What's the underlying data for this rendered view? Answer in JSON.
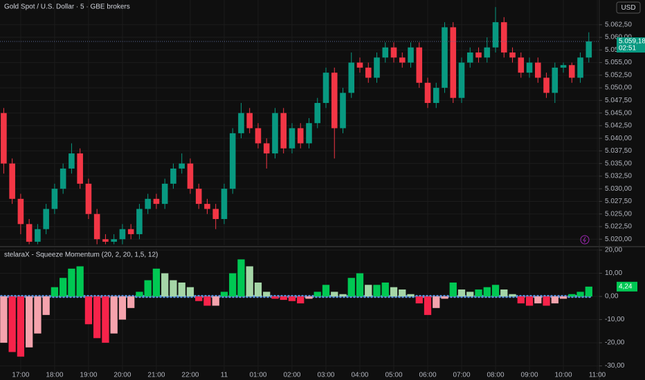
{
  "chart_data": [
    {
      "type": "candlestick",
      "title": "Gold Spot / U.S. Dollar · 5 · GBE brokers",
      "currency": "USD",
      "x": [
        -0.5,
        -0.25,
        0,
        0.25,
        0.5,
        0.75,
        1,
        1.25,
        1.5,
        1.75,
        2,
        2.25,
        2.5,
        2.75,
        3,
        3.25,
        3.5,
        3.75,
        4,
        4.25,
        4.5,
        4.75,
        5,
        5.25,
        5.5,
        5.75,
        6,
        6.25,
        6.5,
        6.75,
        7,
        7.25,
        7.5,
        7.75,
        8,
        8.25,
        8.5,
        8.75,
        9,
        9.25,
        9.5,
        9.75,
        10,
        10.25,
        10.5,
        10.75,
        11,
        11.25,
        11.5,
        11.75,
        12,
        12.25,
        12.5,
        12.75,
        13,
        13.25,
        13.5,
        13.75,
        14,
        14.25,
        14.5,
        14.75,
        15,
        15.25,
        15.5,
        15.75,
        16,
        16.25,
        16.5,
        16.75
      ],
      "open": [
        5045,
        5035,
        5028,
        5023,
        5019.5,
        5022,
        5026,
        5030,
        5034,
        5037,
        5031,
        5025,
        5020,
        5019.5,
        5020,
        5022,
        5021,
        5026,
        5028,
        5027,
        5031,
        5034,
        5035,
        5030,
        5027,
        5026,
        5024,
        5030,
        5041,
        5045,
        5042,
        5039,
        5037,
        5045,
        5038,
        5042,
        5039,
        5043,
        5047,
        5053,
        5042,
        5049,
        5055,
        5054,
        5052,
        5056,
        5058,
        5056,
        5055,
        5058,
        5051,
        5047,
        5050,
        5062,
        5048,
        5055,
        5057,
        5056,
        5058,
        5063,
        5057,
        5056,
        5053,
        5055,
        5052,
        5049,
        5054,
        5054.5,
        5052,
        5056
      ],
      "high": [
        5046,
        5036,
        5029,
        5024,
        5023,
        5027,
        5031,
        5035,
        5039,
        5038,
        5032,
        5026,
        5021,
        5021,
        5023,
        5023,
        5027,
        5029,
        5029,
        5032,
        5035,
        5037,
        5036,
        5031,
        5028,
        5027,
        5031,
        5042,
        5047,
        5046,
        5043,
        5040,
        5046,
        5046,
        5043,
        5043,
        5044,
        5048,
        5054,
        5054,
        5050,
        5057,
        5056,
        5055,
        5057,
        5059,
        5059,
        5057,
        5059,
        5059,
        5052,
        5051,
        5063,
        5063,
        5056,
        5058,
        5058,
        5060,
        5066,
        5064,
        5058,
        5057,
        5056,
        5056,
        5053,
        5055,
        5055,
        5055,
        5057,
        5061
      ],
      "low": [
        5033,
        5027,
        5021,
        5019,
        5019,
        5021,
        5025,
        5029,
        5033,
        5030,
        5024,
        5019,
        5019,
        5019,
        5019,
        5020,
        5020,
        5025,
        5026,
        5026,
        5030,
        5033,
        5029,
        5026,
        5025,
        5022,
        5023,
        5029,
        5040,
        5041,
        5038,
        5034,
        5036,
        5037,
        5037,
        5038,
        5038,
        5042,
        5046,
        5036,
        5041,
        5048,
        5053,
        5051,
        5051,
        5055,
        5055,
        5054,
        5054,
        5050,
        5046,
        5046,
        5049,
        5047,
        5047,
        5054,
        5055,
        5055,
        5057,
        5056,
        5055,
        5052,
        5052,
        5051,
        5048,
        5047,
        5053,
        5051,
        5051,
        5055
      ],
      "close": [
        5035,
        5028,
        5023,
        5019.5,
        5022,
        5026,
        5030,
        5034,
        5037,
        5031,
        5025,
        5020,
        5019.5,
        5020,
        5022,
        5021,
        5026,
        5028,
        5027,
        5031,
        5034,
        5035,
        5030,
        5027,
        5026,
        5024,
        5030,
        5041,
        5045,
        5042,
        5039,
        5037,
        5045,
        5038,
        5042,
        5039,
        5043,
        5047,
        5053,
        5042,
        5049,
        5055,
        5054,
        5052,
        5056,
        5058,
        5056,
        5055,
        5058,
        5051,
        5047,
        5050,
        5062,
        5048,
        5055,
        5057,
        5056,
        5058,
        5063,
        5057,
        5056,
        5053,
        5055,
        5052,
        5049,
        5054,
        5054.5,
        5052,
        5056,
        5059.18
      ],
      "up_color": "#089981",
      "down_color": "#f23645",
      "xlim": [
        -0.61,
        17.06
      ],
      "ylim": [
        5018.8,
        5067.4
      ],
      "yticks": [
        {
          "value": 5020,
          "label": "5.020,00"
        },
        {
          "value": 5022.5,
          "label": "5.022,50"
        },
        {
          "value": 5025,
          "label": "5.025,00"
        },
        {
          "value": 5027.5,
          "label": "5.027,50"
        },
        {
          "value": 5030,
          "label": "5.030,00"
        },
        {
          "value": 5032.5,
          "label": "5.032,50"
        },
        {
          "value": 5035,
          "label": "5.035,00"
        },
        {
          "value": 5037.5,
          "label": "5.037,50"
        },
        {
          "value": 5040,
          "label": "5.040,00"
        },
        {
          "value": 5042.5,
          "label": "5.042,50"
        },
        {
          "value": 5045,
          "label": "5.045,00"
        },
        {
          "value": 5047.5,
          "label": "5.047,50"
        },
        {
          "value": 5050,
          "label": "5.050,00"
        },
        {
          "value": 5052.5,
          "label": "5.052,50"
        },
        {
          "value": 5055,
          "label": "5.055,00"
        },
        {
          "value": 5057.5,
          "label": "5.057,50"
        },
        {
          "value": 5060,
          "label": "5.060,00"
        },
        {
          "value": 5062.5,
          "label": "5.062,50"
        }
      ],
      "last_value": 5059.18,
      "last_label": "5.059,18",
      "countdown": "02:51",
      "grid": true
    },
    {
      "type": "bar",
      "title": "stelaraX - Squeeze Momentum (20, 2, 20, 1,5, 12)",
      "x": [
        -0.5,
        -0.25,
        0,
        0.25,
        0.5,
        0.75,
        1,
        1.25,
        1.5,
        1.75,
        2,
        2.25,
        2.5,
        2.75,
        3,
        3.25,
        3.5,
        3.75,
        4,
        4.25,
        4.5,
        4.75,
        5,
        5.25,
        5.5,
        5.75,
        6,
        6.25,
        6.5,
        6.75,
        7,
        7.25,
        7.5,
        7.75,
        8,
        8.25,
        8.5,
        8.75,
        9,
        9.25,
        9.5,
        9.75,
        10,
        10.25,
        10.5,
        10.75,
        11,
        11.25,
        11.5,
        11.75,
        12,
        12.25,
        12.5,
        12.75,
        13,
        13.25,
        13.5,
        13.75,
        14,
        14.25,
        14.5,
        14.75,
        15,
        15.25,
        15.5,
        15.75,
        16,
        16.25,
        16.5,
        16.75
      ],
      "values": [
        -20,
        -24,
        -26,
        -22,
        -16,
        -8,
        4,
        8,
        12,
        13,
        -12,
        -18,
        -20,
        -16,
        -10,
        -5,
        2,
        7,
        12,
        10,
        7,
        6,
        4,
        -2,
        -4,
        -4,
        2,
        10,
        16,
        13,
        6,
        2,
        -1,
        -1.5,
        -2,
        -3,
        -1,
        2,
        5,
        2,
        1,
        8,
        10,
        5,
        5,
        6,
        4,
        3,
        1,
        -3,
        -8,
        -5,
        -1,
        6,
        3,
        2,
        3,
        4,
        5,
        3,
        1,
        -3,
        -4,
        -3,
        -4,
        -3,
        -1,
        1,
        2,
        4.24
      ],
      "colors": [
        "#00c853",
        "#a5d6a7",
        "#f7234a",
        "#f5a3ad"
      ],
      "xlim": [
        -0.61,
        17.06
      ],
      "ylim": [
        -33.1,
        20.6
      ],
      "yticks": [
        {
          "value": 20,
          "label": "20,00"
        },
        {
          "value": 10,
          "label": "10,00"
        },
        {
          "value": 0,
          "label": "0,00"
        },
        {
          "value": -10,
          "label": "-10,00"
        },
        {
          "value": -20,
          "label": "-20,00"
        },
        {
          "value": -30,
          "label": "-30,00"
        }
      ],
      "xticks": [
        {
          "value": 0,
          "label": "17:00"
        },
        {
          "value": 1,
          "label": "18:00"
        },
        {
          "value": 2,
          "label": "19:00"
        },
        {
          "value": 3,
          "label": "20:00"
        },
        {
          "value": 4,
          "label": "21:00"
        },
        {
          "value": 5,
          "label": "22:00"
        },
        {
          "value": 6,
          "label": "11"
        },
        {
          "value": 7,
          "label": "01:00"
        },
        {
          "value": 8,
          "label": "02:00"
        },
        {
          "value": 9,
          "label": "03:00"
        },
        {
          "value": 10,
          "label": "04:00"
        },
        {
          "value": 11,
          "label": "05:00"
        },
        {
          "value": 12,
          "label": "06:00"
        },
        {
          "value": 13,
          "label": "07:00"
        },
        {
          "value": 14,
          "label": "08:00"
        },
        {
          "value": 15,
          "label": "09:00"
        },
        {
          "value": 16,
          "label": "10:00"
        },
        {
          "value": 17,
          "label": "11:00"
        }
      ],
      "last_label": "4,24",
      "grid": true
    }
  ]
}
